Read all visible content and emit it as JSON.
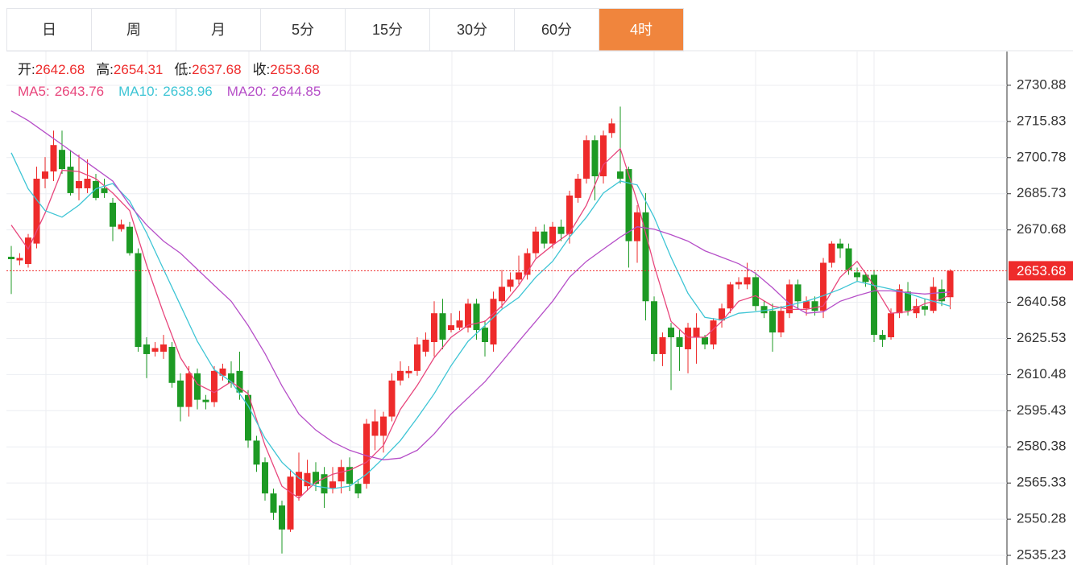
{
  "tabs": [
    "日",
    "周",
    "月",
    "5分",
    "15分",
    "30分",
    "60分",
    "4时"
  ],
  "active_tab": 7,
  "chart_data": {
    "type": "candlestick",
    "info": {
      "labels": [
        "开:",
        "高:",
        "低:",
        "收:"
      ],
      "values": [
        2642.68,
        2654.31,
        2637.68,
        2653.68
      ]
    },
    "up_color": "#ee2b2b",
    "down_color": "#1d9a24",
    "xlim": [
      -0.57,
      117.71
    ],
    "ylim": [
      2531.22,
      2744.93
    ],
    "yticks": [
      2730.88,
      2715.83,
      2700.78,
      2685.73,
      2670.68,
      2640.58,
      2625.53,
      2610.48,
      2595.43,
      2580.38,
      2565.33,
      2550.28,
      2535.23
    ],
    "grid": true,
    "price_line": 2653.68,
    "open": [
      2659.5,
      2658,
      2656.5,
      2665,
      2692,
      2695,
      2704,
      2697,
      2688,
      2688,
      2691,
      2688,
      2682,
      2671,
      2672,
      2661,
      2623,
      2620,
      2620,
      2622,
      2608,
      2597,
      2611,
      2600,
      2599,
      2610,
      2611,
      2612,
      2602,
      2583,
      2574,
      2561,
      2556,
      2546,
      2560,
      2564,
      2570,
      2569,
      2563,
      2566,
      2572,
      2565,
      2565,
      2585,
      2585,
      2593,
      2608,
      2611,
      2612,
      2620,
      2624,
      2636,
      2629,
      2630,
      2630,
      2640,
      2630,
      2623,
      2641,
      2647,
      2650,
      2652,
      2661,
      2670,
      2665,
      2672,
      2669,
      2684,
      2692,
      2708,
      2693,
      2711,
      2695,
      2696,
      2666,
      2678,
      2641,
      2619,
      2630,
      2626,
      2621,
      2626,
      2626,
      2623,
      2633,
      2638,
      2648,
      2648,
      2651,
      2639,
      2637,
      2628,
      2636,
      2648,
      2638,
      2641,
      2637,
      2657,
      2665,
      2663,
      2653,
      2652,
      2652,
      2627,
      2626,
      2636,
      2645,
      2636,
      2639,
      2637,
      2646,
      2642.68
    ],
    "high": [
      2664,
      2661,
      2669,
      2697,
      2701,
      2712,
      2712,
      2704,
      2702,
      2700,
      2694,
      2692,
      2684,
      2675,
      2674,
      2663,
      2626,
      2624,
      2627,
      2624,
      2611,
      2614,
      2613,
      2602,
      2614,
      2615,
      2616,
      2620,
      2604,
      2585,
      2576,
      2563,
      2558,
      2571,
      2578,
      2575,
      2574,
      2572,
      2572,
      2575,
      2576,
      2567,
      2592,
      2596,
      2595,
      2611,
      2616,
      2614,
      2626,
      2628,
      2641,
      2642,
      2636,
      2637,
      2642,
      2642,
      2633,
      2645,
      2654,
      2653,
      2660,
      2663,
      2672,
      2673,
      2674,
      2675,
      2687,
      2694,
      2710,
      2710,
      2712,
      2717,
      2722,
      2697,
      2681,
      2686,
      2643,
      2628,
      2632,
      2629,
      2632,
      2636,
      2627,
      2634,
      2640,
      2649,
      2651,
      2657,
      2653,
      2641,
      2640,
      2639,
      2650,
      2650,
      2643,
      2643,
      2659,
      2666,
      2667,
      2665,
      2655,
      2653,
      2654,
      2629,
      2638,
      2648,
      2649,
      2642,
      2642,
      2651,
      2650,
      2654.31
    ],
    "low": [
      2644,
      2656,
      2655,
      2663,
      2688,
      2691,
      2694,
      2685,
      2683,
      2686,
      2683,
      2684,
      2666,
      2670,
      2660,
      2620,
      2609,
      2618,
      2617,
      2605,
      2591,
      2593,
      2596,
      2596,
      2597,
      2608,
      2605,
      2600,
      2580,
      2570,
      2558,
      2550,
      2536,
      2545,
      2558,
      2562,
      2562,
      2555,
      2561,
      2561,
      2562,
      2559,
      2563,
      2579,
      2578,
      2591,
      2606,
      2609,
      2610,
      2618,
      2618,
      2621,
      2628,
      2629,
      2628,
      2625,
      2618,
      2620,
      2638,
      2645,
      2648,
      2650,
      2659,
      2663,
      2663,
      2666,
      2665,
      2682,
      2690,
      2683,
      2690,
      2709,
      2690,
      2655,
      2657,
      2633,
      2616,
      2614,
      2604,
      2612,
      2611,
      2615,
      2621,
      2621,
      2630,
      2636,
      2646,
      2646,
      2637,
      2634,
      2620,
      2626,
      2634,
      2638,
      2635,
      2635,
      2634,
      2655,
      2659,
      2652,
      2649,
      2647,
      2624,
      2622,
      2625,
      2634,
      2635,
      2634,
      2635,
      2636,
      2639,
      2637.68
    ],
    "close": [
      2658.5,
      2659,
      2667.5,
      2692,
      2695,
      2706,
      2696,
      2686,
      2691,
      2692,
      2684,
      2686,
      2672,
      2673,
      2661,
      2622,
      2619,
      2621.5,
      2623,
      2607,
      2597,
      2611,
      2600,
      2599,
      2612,
      2613,
      2607,
      2603,
      2583,
      2573,
      2561,
      2553,
      2546,
      2568,
      2570,
      2569.5,
      2565,
      2561,
      2566,
      2572,
      2565,
      2561,
      2590,
      2591,
      2593,
      2608,
      2612,
      2612,
      2623,
      2625,
      2636,
      2625,
      2631,
      2633,
      2640,
      2629,
      2624,
      2642,
      2647,
      2650,
      2653,
      2661,
      2670,
      2665,
      2672,
      2669,
      2685,
      2692,
      2708,
      2693,
      2710,
      2715,
      2692,
      2666,
      2678,
      2641,
      2619,
      2626,
      2626,
      2622,
      2630,
      2630,
      2623,
      2633,
      2638,
      2648,
      2649,
      2651,
      2639,
      2636,
      2628,
      2637,
      2648,
      2641,
      2641,
      2637,
      2657,
      2665,
      2663,
      2654,
      2651,
      2649,
      2627,
      2625,
      2636,
      2646,
      2637,
      2639,
      2637.5,
      2647,
      2641,
      2653.68
    ],
    "series": [
      {
        "name": "MA5:",
        "legend_value": 2643.76,
        "color": "#e8467c",
        "x": [
          0,
          2,
          4,
          6,
          8,
          10,
          12,
          14,
          16,
          18,
          20,
          22,
          24,
          26,
          28,
          30,
          32,
          34,
          36,
          38,
          40,
          42,
          44,
          46,
          48,
          50,
          52,
          54,
          56,
          58,
          60,
          62,
          64,
          66,
          68,
          70,
          72,
          74,
          76,
          78,
          80,
          82,
          84,
          86,
          88,
          90,
          92,
          94,
          96,
          98,
          100,
          102,
          104,
          106,
          108,
          110,
          111
        ],
        "values": [
          2672.7,
          2662.7,
          2677.7,
          2695.5,
          2695,
          2692,
          2686,
          2678.7,
          2656,
          2636,
          2617.5,
          2606.5,
          2603,
          2607.5,
          2602.5,
          2581,
          2564,
          2559,
          2565.7,
          2569,
          2570.7,
          2574,
          2581,
          2596,
          2606,
          2617.5,
          2626,
          2631,
          2632.6,
          2639,
          2647.6,
          2658.6,
          2664.3,
          2669.4,
          2681,
          2697.8,
          2704.5,
          2682.7,
          2656,
          2632.6,
          2626,
          2626,
          2632.6,
          2641,
          2643.3,
          2639,
          2637.6,
          2637.6,
          2639,
          2651,
          2657.6,
          2647.6,
          2636,
          2636.6,
          2640,
          2641.9,
          2643.76
        ]
      },
      {
        "name": "MA10:",
        "legend_value": 2638.96,
        "color": "#3ec5d5",
        "x": [
          0,
          2,
          4,
          6,
          8,
          10,
          12,
          14,
          16,
          18,
          20,
          22,
          24,
          26,
          28,
          30,
          32,
          34,
          36,
          38,
          40,
          42,
          44,
          46,
          48,
          50,
          52,
          54,
          56,
          58,
          60,
          62,
          64,
          66,
          68,
          70,
          72,
          74,
          76,
          78,
          80,
          82,
          84,
          86,
          88,
          90,
          92,
          94,
          96,
          98,
          100,
          102,
          104,
          106,
          108,
          110,
          111
        ],
        "values": [
          2702.8,
          2687.8,
          2678.7,
          2676,
          2681,
          2687.8,
          2690,
          2682.7,
          2669.4,
          2654.3,
          2639.3,
          2624.3,
          2612.5,
          2607.5,
          2597.5,
          2584,
          2574,
          2567.4,
          2564,
          2563,
          2564,
          2569,
          2575.7,
          2583,
          2592.5,
          2602.5,
          2614.2,
          2624.3,
          2630.9,
          2637.6,
          2642.6,
          2651,
          2657.6,
          2667.7,
          2676,
          2686,
          2691,
          2689.4,
          2676,
          2659.3,
          2644.3,
          2634.3,
          2633.2,
          2636,
          2636.6,
          2637.6,
          2639.3,
          2641,
          2643.3,
          2646,
          2649.3,
          2647.6,
          2646,
          2644.3,
          2642,
          2640,
          2638.96
        ]
      },
      {
        "name": "MA20:",
        "legend_value": 2644.85,
        "color": "#b64fc8",
        "x": [
          0,
          2,
          4,
          6,
          8,
          10,
          12,
          14,
          16,
          18,
          20,
          22,
          24,
          26,
          28,
          30,
          32,
          34,
          36,
          38,
          40,
          42,
          44,
          46,
          48,
          50,
          52,
          54,
          56,
          58,
          60,
          62,
          64,
          66,
          68,
          70,
          72,
          74,
          76,
          78,
          80,
          82,
          84,
          86,
          88,
          90,
          92,
          94,
          96,
          98,
          100,
          102,
          104,
          106,
          108,
          110,
          111
        ],
        "values": [
          2720.2,
          2716.2,
          2711.2,
          2706.2,
          2701.1,
          2696.1,
          2691,
          2681,
          2672.7,
          2666,
          2661,
          2654.3,
          2647.6,
          2641,
          2630.9,
          2619.2,
          2605.8,
          2594.1,
          2587.4,
          2582.4,
          2579,
          2576.7,
          2575,
          2575.7,
          2579,
          2585.8,
          2594.1,
          2600.8,
          2607.5,
          2615.8,
          2624.3,
          2632.6,
          2641,
          2651,
          2657.6,
          2662.7,
          2667.7,
          2672,
          2671,
          2668.7,
          2666,
          2662,
          2659.3,
          2656.6,
          2652.6,
          2646.6,
          2640,
          2636,
          2636.6,
          2641,
          2643.3,
          2645.3,
          2645.3,
          2644.6,
          2644,
          2644.6,
          2644.85
        ]
      }
    ]
  }
}
